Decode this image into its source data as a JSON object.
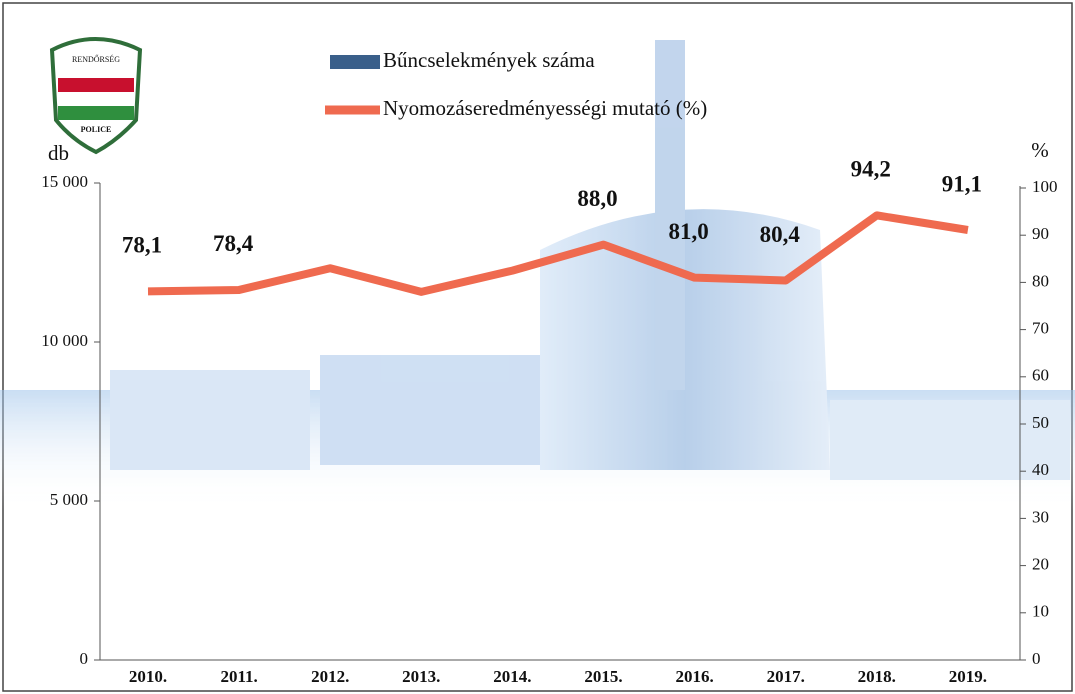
{
  "logo": {
    "top": "RENDŐRSÉG",
    "bottom": "POLICE"
  },
  "chart_data": {
    "type": "bar-line",
    "categories": [
      "2010.",
      "2011.",
      "2012.",
      "2013.",
      "2014.",
      "2015.",
      "2016.",
      "2017.",
      "2018.",
      "2019."
    ],
    "series": [
      {
        "name": "Bűncselekmények száma",
        "type": "bar",
        "color": "#3a5f8a",
        "axis": "y",
        "values": [
          null,
          null,
          null,
          null,
          null,
          null,
          null,
          null,
          null,
          null
        ]
      },
      {
        "name": "Nyomozáseredményességi mutató (%)",
        "type": "line",
        "color": "#ef6a4f",
        "axis": "y2",
        "values": [
          78.1,
          78.4,
          83,
          78,
          82.5,
          88.0,
          81.0,
          80.4,
          94.2,
          91.1
        ],
        "value_labels": [
          "78,1",
          "78,4",
          null,
          null,
          null,
          "88,0",
          "81,0",
          "80,4",
          "94,2",
          "91,1"
        ]
      }
    ],
    "y_label": "db",
    "y2_label": "%",
    "ylim": [
      0,
      15000
    ],
    "yticks": [
      0,
      {
        "value": 5000,
        "label": "5 000"
      },
      {
        "value": 10000,
        "label": "10 000"
      },
      {
        "value": 15000,
        "label": "15 000"
      }
    ],
    "y2lim": [
      0,
      100
    ],
    "y2ticks": [
      0,
      10,
      20,
      30,
      40,
      50,
      60,
      70,
      80,
      90,
      100
    ],
    "grid": false
  }
}
